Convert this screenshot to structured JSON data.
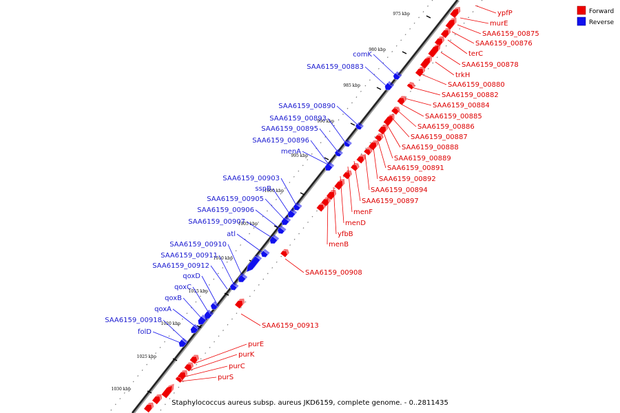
{
  "legend": {
    "forward_label": "Forward",
    "reverse_label": "Reverse",
    "forward_color": "#ee0000",
    "reverse_color": "#1010ee"
  },
  "caption": "Staphylococcus aureus subsp. aureus JKD6159, complete genome. - 0..2811435",
  "ticks": [
    {
      "label": "975 kbp",
      "kbp": 975
    },
    {
      "label": "980 kbp",
      "kbp": 980
    },
    {
      "label": "985 kbp",
      "kbp": 985
    },
    {
      "label": "990 kbp",
      "kbp": 990
    },
    {
      "label": "995 kbp",
      "kbp": 995
    },
    {
      "label": "1000 kbp",
      "kbp": 1000
    },
    {
      "label": "1005 kbp",
      "kbp": 1005
    },
    {
      "label": "1010 kbp",
      "kbp": 1010
    },
    {
      "label": "1015 kbp",
      "kbp": 1015
    },
    {
      "label": "1020 kbp",
      "kbp": 1020
    },
    {
      "label": "1025 kbp",
      "kbp": 1025
    },
    {
      "label": "1030 kbp",
      "kbp": 1030
    }
  ],
  "forward_genes": [
    "ypfP",
    "murE",
    "SAA6159_00875",
    "SAA6159_00876",
    "terC",
    "SAA6159_00878",
    "trkH",
    "SAA6159_00880",
    "SAA6159_00882",
    "SAA6159_00884",
    "SAA6159_00885",
    "SAA6159_00886",
    "SAA6159_00887",
    "SAA6159_00888",
    "SAA6159_00889",
    "SAA6159_00891",
    "SAA6159_00892",
    "SAA6159_00894",
    "SAA6159_00897",
    "menF",
    "menD",
    "yfbB",
    "menB",
    "SAA6159_00908",
    "SAA6159_00913",
    "purE",
    "purK",
    "purC",
    "purS"
  ],
  "reverse_genes": [
    "comK",
    "SAA6159_00883",
    "SAA6159_00890",
    "SAA6159_00893",
    "SAA6159_00895",
    "SAA6159_00896",
    "menA",
    "SAA6159_00903",
    "sspB",
    "SAA6159_00905",
    "SAA6159_00906",
    "SAA6159_00907",
    "atl",
    "SAA6159_00910",
    "SAA6159_00911",
    "SAA6159_00912",
    "qoxD",
    "qoxC",
    "qoxB",
    "qoxA",
    "SAA6159_00918",
    "folD"
  ]
}
